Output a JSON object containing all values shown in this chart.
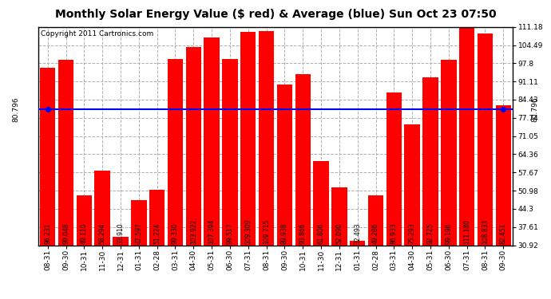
{
  "title": "Monthly Solar Energy Value ($ red) & Average (blue) Sun Oct 23 07:50",
  "copyright": "Copyright 2011 Cartronics.com",
  "categories": [
    "08-31",
    "09-30",
    "10-31",
    "11-30",
    "12-31",
    "01-31",
    "02-28",
    "03-31",
    "04-30",
    "05-31",
    "06-30",
    "07-31",
    "08-31",
    "09-30",
    "10-31",
    "11-30",
    "12-31",
    "01-31",
    "02-28",
    "03-31",
    "04-30",
    "05-31",
    "06-30",
    "07-31",
    "08-31",
    "09-30"
  ],
  "values": [
    96.231,
    99.048,
    49.11,
    58.294,
    33.91,
    47.597,
    51.224,
    99.33,
    103.922,
    107.394,
    99.517,
    109.309,
    109.715,
    89.938,
    93.866,
    61.806,
    52.09,
    32.493,
    49.286,
    86.933,
    75.293,
    92.725,
    99.196,
    111.18,
    108.833,
    82.451
  ],
  "average": 80.796,
  "bar_color": "#ff0000",
  "avg_color": "#0000ff",
  "background_color": "#ffffff",
  "plot_bg_color": "#ffffff",
  "grid_color": "#b0b0b0",
  "yticks": [
    30.92,
    37.61,
    44.3,
    50.98,
    57.67,
    64.36,
    71.05,
    77.74,
    84.43,
    91.11,
    97.8,
    104.49,
    111.18
  ],
  "ylim_min": 30.92,
  "ylim_max": 111.18,
  "avg_label": "80.796",
  "title_fontsize": 10,
  "copyright_fontsize": 6.5,
  "tick_fontsize": 6.5,
  "ytick_fontsize": 6.5,
  "bar_label_fontsize": 5.5,
  "avg_fontsize": 6.5
}
